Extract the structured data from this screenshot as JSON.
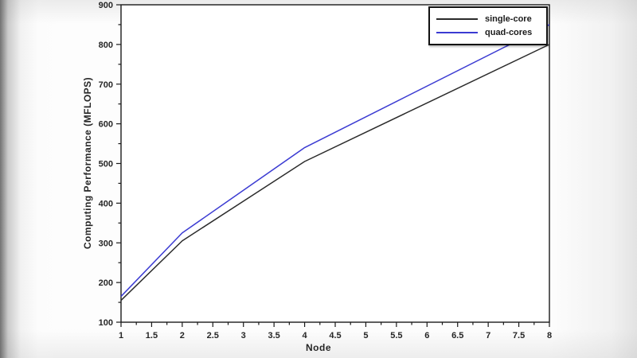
{
  "chart_data": {
    "type": "line",
    "title": "",
    "xlabel": "Node",
    "ylabel": "Computing Performance (MFLOPS)",
    "xlim": [
      1,
      8
    ],
    "ylim": [
      100,
      900
    ],
    "x_major_tick_step": 0.5,
    "x_minor_tick_step": 0.25,
    "y_major_tick_step": 100,
    "y_minor_tick_step": 50,
    "grid": false,
    "legend_position": "top-right",
    "axis_color": "#1a1a1a",
    "text_color": "#262626",
    "plot_background": "#ffffff",
    "series": [
      {
        "name": "single-core",
        "color": "#2b2b2b",
        "x": [
          1,
          2,
          4,
          8
        ],
        "values": [
          155,
          305,
          505,
          800
        ]
      },
      {
        "name": "quad-cores",
        "color": "#3b3bd2",
        "x": [
          1,
          2,
          4,
          8
        ],
        "values": [
          165,
          325,
          540,
          850
        ]
      }
    ]
  }
}
